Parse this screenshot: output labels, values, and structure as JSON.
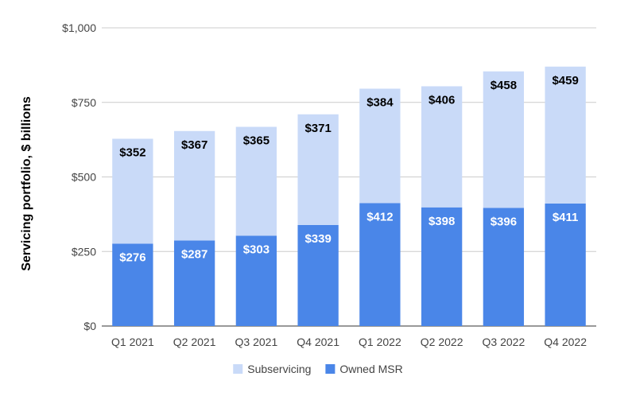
{
  "chart_data": {
    "type": "bar",
    "stacked": true,
    "categories": [
      "Q1 2021",
      "Q2 2021",
      "Q3 2021",
      "Q4 2021",
      "Q1 2022",
      "Q2 2022",
      "Q3 2022",
      "Q4 2022"
    ],
    "series": [
      {
        "name": "Owned MSR",
        "values": [
          276,
          287,
          303,
          339,
          412,
          398,
          396,
          411
        ],
        "color": "#4a86e8",
        "label_color": "#ffffff",
        "labels": [
          "$276",
          "$287",
          "$303",
          "$339",
          "$412",
          "$398",
          "$396",
          "$411"
        ]
      },
      {
        "name": "Subservicing",
        "values": [
          352,
          367,
          365,
          371,
          384,
          406,
          458,
          459
        ],
        "color": "#c9daf8",
        "label_color": "#000000",
        "labels": [
          "$352",
          "$367",
          "$365",
          "$371",
          "$384",
          "$406",
          "$458",
          "$459"
        ]
      }
    ],
    "ylabel": "Servicing portfolio, $ billions",
    "ylim": [
      0,
      1000
    ],
    "yticks": [
      {
        "value": 0,
        "label": "$0"
      },
      {
        "value": 250,
        "label": "$250"
      },
      {
        "value": 500,
        "label": "$500"
      },
      {
        "value": 750,
        "label": "$750"
      },
      {
        "value": 1000,
        "label": "$1,000"
      }
    ],
    "grid": true,
    "legend_position": "bottom",
    "legend": [
      {
        "name": "Subservicing",
        "color": "#c9daf8"
      },
      {
        "name": "Owned MSR",
        "color": "#4a86e8"
      }
    ]
  }
}
